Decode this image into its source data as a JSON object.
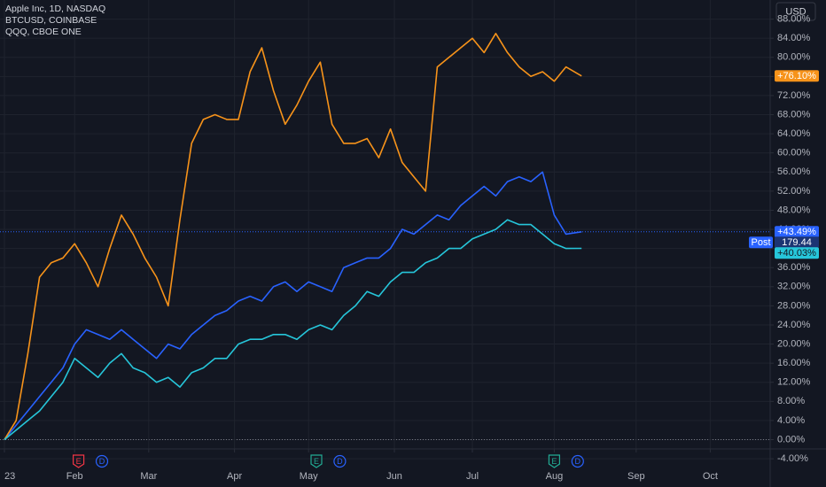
{
  "chart_data": {
    "type": "line",
    "currency": "USD",
    "x": [
      0,
      3,
      6,
      9,
      12,
      15,
      18,
      21,
      24,
      27,
      30,
      33,
      36,
      39,
      42,
      45,
      48,
      51,
      54,
      57,
      60,
      63,
      66,
      69,
      72,
      75,
      78,
      81,
      84,
      87,
      90,
      93,
      96,
      99,
      102,
      105,
      108,
      111,
      114,
      117,
      120,
      123,
      126,
      129,
      132,
      135,
      138,
      141,
      144,
      148
    ],
    "xlim": [
      0,
      196
    ],
    "xticks": [
      {
        "value": 0,
        "label": "23"
      },
      {
        "value": 18,
        "label": "Feb"
      },
      {
        "value": 37,
        "label": "Mar"
      },
      {
        "value": 59,
        "label": "Apr"
      },
      {
        "value": 78,
        "label": "May"
      },
      {
        "value": 100,
        "label": "Jun"
      },
      {
        "value": 120,
        "label": "Jul"
      },
      {
        "value": 141,
        "label": "Aug"
      },
      {
        "value": 162,
        "label": "Sep"
      },
      {
        "value": 181,
        "label": "Oct"
      }
    ],
    "ylim": [
      -4.8,
      92
    ],
    "yticks": [
      {
        "value": 88,
        "label": "88.00%"
      },
      {
        "value": 84,
        "label": "84.00%"
      },
      {
        "value": 80,
        "label": "80.00%"
      },
      {
        "value": 76,
        "label": "76.00%"
      },
      {
        "value": 72,
        "label": "72.00%"
      },
      {
        "value": 68,
        "label": "68.00%"
      },
      {
        "value": 64,
        "label": "64.00%"
      },
      {
        "value": 60,
        "label": "60.00%"
      },
      {
        "value": 56,
        "label": "56.00%"
      },
      {
        "value": 52,
        "label": "52.00%"
      },
      {
        "value": 48,
        "label": "48.00%"
      },
      {
        "value": 44,
        "label": "44.00%"
      },
      {
        "value": 40,
        "label": "40.00%"
      },
      {
        "value": 36,
        "label": "36.00%"
      },
      {
        "value": 32,
        "label": "32.00%"
      },
      {
        "value": 28,
        "label": "28.00%"
      },
      {
        "value": 24,
        "label": "24.00%"
      },
      {
        "value": 20,
        "label": "20.00%"
      },
      {
        "value": 16,
        "label": "16.00%"
      },
      {
        "value": 12,
        "label": "12.00%"
      },
      {
        "value": 8,
        "label": "8.00%"
      },
      {
        "value": 4,
        "label": "4.00%"
      },
      {
        "value": 0,
        "label": "0.00%"
      },
      {
        "value": -4,
        "label": "-4.00%"
      }
    ],
    "grid": true,
    "post_label": "Post",
    "post_price": 179.44,
    "series": [
      {
        "name": "Apple Inc, 1D, NASDAQ",
        "color": "#2962ff",
        "last_label": "+43.49%",
        "values": [
          0,
          3,
          6,
          9,
          12,
          15,
          20,
          23,
          22,
          21,
          23,
          21,
          19,
          17,
          20,
          19,
          22,
          24,
          26,
          27,
          29,
          30,
          29,
          32,
          33,
          31,
          33,
          32,
          31,
          36,
          37,
          38,
          38,
          40,
          44,
          43,
          45,
          47,
          46,
          49,
          51,
          53,
          51,
          54,
          55,
          54,
          56,
          47,
          43,
          43.49
        ]
      },
      {
        "name": "BTCUSD, COINBASE",
        "color": "#f7931a",
        "last_label": "+76.10%",
        "values": [
          0,
          4,
          18,
          34,
          37,
          38,
          41,
          37,
          32,
          40,
          47,
          43,
          38,
          34,
          28,
          46,
          62,
          67,
          68,
          67,
          67,
          77,
          82,
          73,
          66,
          70,
          75,
          79,
          66,
          62,
          62,
          63,
          59,
          65,
          58,
          55,
          52,
          78,
          80,
          82,
          84,
          81,
          85,
          81,
          78,
          76,
          77,
          75,
          78,
          76.1
        ]
      },
      {
        "name": "QQQ, CBOE ONE",
        "color": "#26c6da",
        "last_label": "+40.03%",
        "values": [
          0,
          2,
          4,
          6,
          9,
          12,
          17,
          15,
          13,
          16,
          18,
          15,
          14,
          12,
          13,
          11,
          14,
          15,
          17,
          17,
          20,
          21,
          21,
          22,
          22,
          21,
          23,
          24,
          23,
          26,
          28,
          31,
          30,
          33,
          35,
          35,
          37,
          38,
          40,
          40,
          42,
          43,
          44,
          46,
          45,
          45,
          43,
          41,
          40,
          40.03
        ]
      }
    ],
    "events": [
      {
        "x": 19,
        "label": "E",
        "color": "#f23645"
      },
      {
        "x": 25,
        "label": "D",
        "color": "#2962ff"
      },
      {
        "x": 80,
        "label": "E",
        "color": "#22ab94"
      },
      {
        "x": 86,
        "label": "D",
        "color": "#2962ff"
      },
      {
        "x": 141,
        "label": "E",
        "color": "#22ab94"
      },
      {
        "x": 147,
        "label": "D",
        "color": "#2962ff"
      }
    ]
  }
}
